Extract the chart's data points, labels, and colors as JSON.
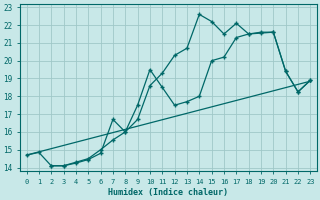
{
  "xlabel": "Humidex (Indice chaleur)",
  "bg_color": "#c8e8e8",
  "grid_color": "#a0c8c8",
  "line_color": "#006868",
  "xlim": [
    -0.5,
    23.5
  ],
  "ylim": [
    13.8,
    23.2
  ],
  "xticks": [
    0,
    1,
    2,
    3,
    4,
    5,
    6,
    7,
    8,
    9,
    10,
    11,
    12,
    13,
    14,
    15,
    16,
    17,
    18,
    19,
    20,
    21,
    22,
    23
  ],
  "yticks": [
    14,
    15,
    16,
    17,
    18,
    19,
    20,
    21,
    22,
    23
  ],
  "line1_x": [
    0,
    1,
    2,
    3,
    4,
    5,
    6,
    7,
    8,
    9,
    10,
    11,
    12,
    13,
    14,
    15,
    16,
    17,
    18,
    19,
    20,
    21,
    22,
    23
  ],
  "line1_y": [
    14.7,
    14.85,
    14.1,
    14.1,
    14.3,
    14.5,
    15.0,
    15.55,
    16.0,
    16.7,
    18.6,
    19.3,
    20.3,
    20.7,
    22.6,
    22.2,
    21.5,
    22.1,
    21.5,
    21.6,
    21.6,
    19.4,
    18.25,
    18.9
  ],
  "line2_x": [
    2,
    3,
    4,
    5,
    6,
    7,
    8,
    9,
    10,
    11,
    12,
    13,
    14,
    15,
    16,
    17,
    18,
    19,
    20,
    21,
    22,
    23
  ],
  "line2_y": [
    14.1,
    14.1,
    14.25,
    14.45,
    14.8,
    16.7,
    16.0,
    17.5,
    19.5,
    18.5,
    17.5,
    17.7,
    18.0,
    20.0,
    20.2,
    21.3,
    21.5,
    21.55,
    21.6,
    19.4,
    18.25,
    18.9
  ],
  "line3_x": [
    0,
    23
  ],
  "line3_y": [
    14.7,
    18.85
  ]
}
